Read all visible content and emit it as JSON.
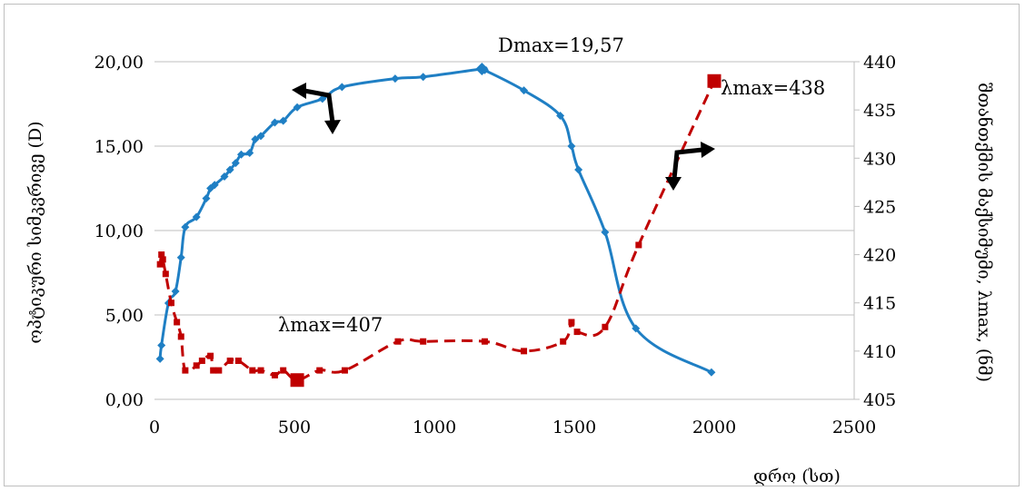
{
  "chart_data": {
    "type": "line",
    "xlabel": "დრო (სთ)",
    "ylabel": "ოპტიკური სიმკვრივე (D)",
    "y2label": "შთანთქმის მაქსიმუმი, λmax, (ნმ)",
    "xlim": [
      0,
      2500
    ],
    "xticks": [
      "0",
      "500",
      "1000",
      "1500",
      "2000",
      "2500"
    ],
    "ylim": [
      0,
      20
    ],
    "yticks": [
      "0,00",
      "5,00",
      "10,00",
      "15,00",
      "20,00"
    ],
    "y2lim": [
      405,
      440
    ],
    "y2ticks": [
      "405",
      "410",
      "415",
      "420",
      "425",
      "430",
      "435",
      "440"
    ],
    "grid": "horizontal",
    "annotations": {
      "dmax": "Dmax=19,57",
      "lmax_high": "λmax=438",
      "lmax_low": "λmax=407"
    },
    "series": [
      {
        "axis": "left",
        "color": "#1f7fc4",
        "x": [
          20,
          25,
          50,
          75,
          95,
          110,
          150,
          185,
          200,
          215,
          250,
          270,
          290,
          310,
          340,
          360,
          380,
          430,
          460,
          510,
          600,
          670,
          860,
          960,
          1170,
          1180,
          1320,
          1450,
          1490,
          1515,
          1610,
          1720,
          1990
        ],
        "y": [
          2.4,
          3.2,
          5.7,
          6.4,
          8.4,
          10.2,
          10.8,
          11.9,
          12.5,
          12.7,
          13.2,
          13.6,
          14.0,
          14.5,
          14.6,
          15.4,
          15.6,
          16.4,
          16.5,
          17.3,
          17.8,
          18.5,
          19.0,
          19.1,
          19.57,
          19.5,
          18.3,
          16.8,
          15.0,
          13.6,
          9.9,
          4.2,
          1.6
        ]
      },
      {
        "axis": "right",
        "color": "#c00000",
        "x": [
          20,
          25,
          30,
          40,
          60,
          80,
          95,
          110,
          150,
          170,
          200,
          210,
          230,
          270,
          300,
          350,
          380,
          430,
          460,
          510,
          590,
          680,
          870,
          960,
          1180,
          1320,
          1460,
          1490,
          1510,
          1610,
          1730,
          2000
        ],
        "y": [
          419.0,
          420.0,
          419.5,
          418.0,
          415.0,
          413.0,
          411.5,
          408.0,
          408.5,
          409.0,
          409.5,
          408.0,
          408.0,
          409.0,
          409.0,
          408.0,
          408.0,
          407.5,
          408.0,
          407.0,
          408.0,
          408.0,
          411.0,
          411.0,
          411.0,
          410.0,
          411.0,
          413.0,
          412.0,
          412.5,
          421.0,
          438.0
        ]
      }
    ]
  }
}
